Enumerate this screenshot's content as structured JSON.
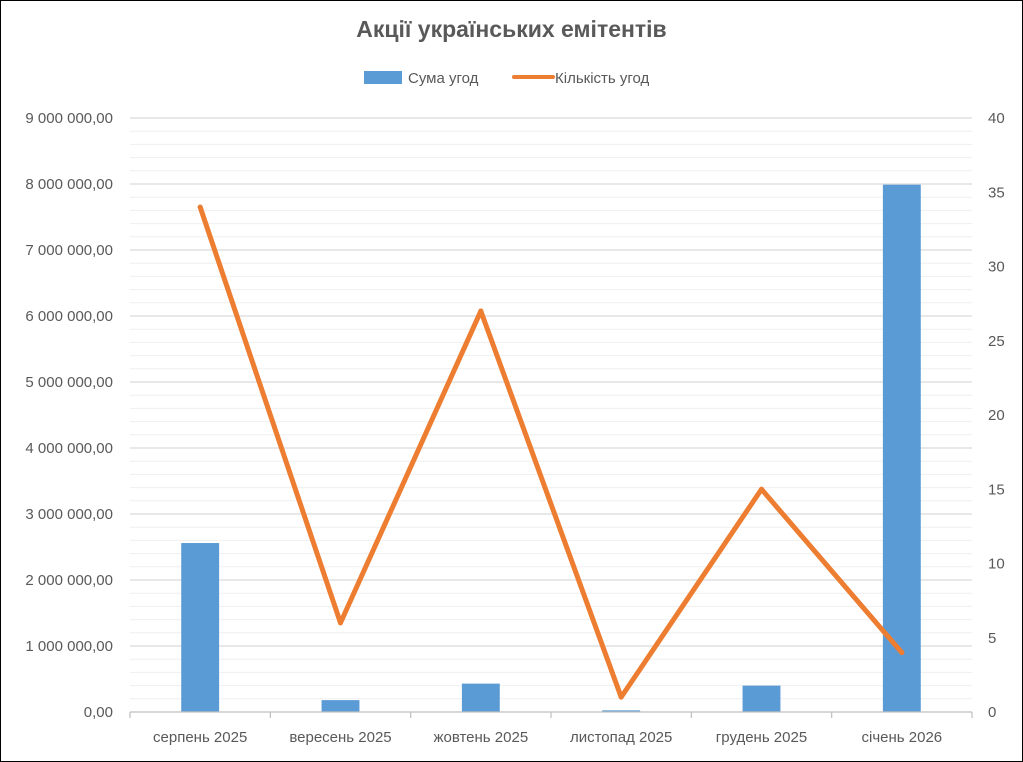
{
  "chart_data": {
    "type": "bar+line",
    "title": "Акції українських емітентів",
    "categories": [
      "серпень 2025",
      "вересень 2025",
      "жовтень 2025",
      "листопад 2025",
      "грудень 2025",
      "січень 2026"
    ],
    "series": [
      {
        "name": "Сума угод",
        "type": "bar",
        "axis": "left",
        "color": "#5B9BD5",
        "values": [
          2560000,
          180000,
          430000,
          25000,
          400000,
          7990000
        ]
      },
      {
        "name": "Кількість угод",
        "type": "line",
        "axis": "right",
        "color": "#ED7D31",
        "values": [
          34,
          6,
          27,
          1,
          15,
          4
        ]
      }
    ],
    "y_left": {
      "min": 0,
      "max": 9000000,
      "ticks": [
        0,
        1000000,
        2000000,
        3000000,
        4000000,
        5000000,
        6000000,
        7000000,
        8000000,
        9000000
      ],
      "tick_labels": [
        "0,00",
        "1 000 000,00",
        "2 000 000,00",
        "3 000 000,00",
        "4 000 000,00",
        "5 000 000,00",
        "6 000 000,00",
        "7 000 000,00",
        "8 000 000,00",
        "9 000 000,00"
      ]
    },
    "y_right": {
      "min": 0,
      "max": 40,
      "ticks": [
        0,
        5,
        10,
        15,
        20,
        25,
        30,
        35,
        40
      ],
      "tick_labels": [
        "0",
        "5",
        "10",
        "15",
        "20",
        "25",
        "30",
        "35",
        "40"
      ]
    },
    "grid": true,
    "legend_position": "top",
    "colors": {
      "gridline": "#D9D9D9",
      "minor_gridline": "#EFEFEF",
      "axis_line": "#BFBFBF",
      "text": "#595959",
      "frame": "#000000"
    }
  }
}
